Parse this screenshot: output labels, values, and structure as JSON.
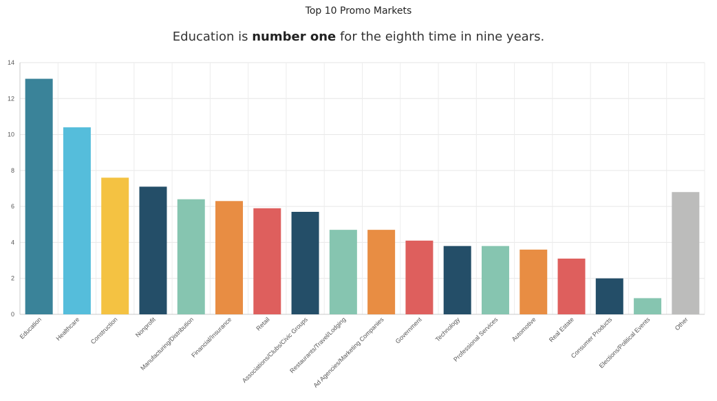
{
  "header": {
    "title": "Top 10 Promo Markets",
    "subtitle_pre": "Education is ",
    "subtitle_bold": "number one",
    "subtitle_post": " for the eighth time in nine years."
  },
  "chart_data": {
    "type": "bar",
    "title": "Top 10 Promo Markets",
    "subtitle": "Education is number one for the eighth time in nine years.",
    "xlabel": "",
    "ylabel": "",
    "ylim": [
      0,
      14
    ],
    "yticks": [
      0,
      2,
      4,
      6,
      8,
      10,
      12,
      14
    ],
    "grid": true,
    "categories": [
      "Education",
      "Healthcare",
      "Construction",
      "Nonprofit",
      "Manufacturing/Distribution",
      "Financial/Insurance",
      "Retail",
      "Associations/Clubs/Civic Groups",
      "Restaurants/Travel/Lodging",
      "Ad Agencies/Marketing Companies",
      "Government",
      "Technology",
      "Professional Services",
      "Automotive",
      "Real Estate",
      "Consumer Products",
      "Elections/Political Events",
      "Other"
    ],
    "values": [
      13.1,
      10.4,
      7.6,
      7.1,
      6.4,
      6.3,
      5.9,
      5.7,
      4.7,
      4.7,
      4.1,
      3.8,
      3.8,
      3.6,
      3.1,
      2.0,
      0.9,
      6.8
    ],
    "colors": [
      "#3a8399",
      "#55bddb",
      "#f4c242",
      "#244e68",
      "#86c5b0",
      "#e88d43",
      "#de5f5d",
      "#244e68",
      "#86c5b0",
      "#e88d43",
      "#de5f5d",
      "#244e68",
      "#86c5b0",
      "#e88d43",
      "#de5f5d",
      "#244e68",
      "#86c5b0",
      "#bcbcbb"
    ]
  }
}
